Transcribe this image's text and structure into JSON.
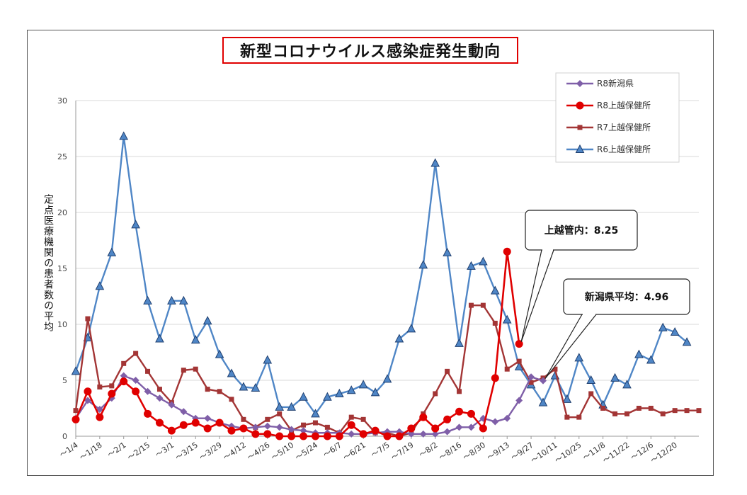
{
  "chart_data": {
    "type": "line",
    "title": "新型コロナウイルス感染症発生動向",
    "ylabel": "定点医療機関の患者数の平均",
    "xlabel": "",
    "ylim": [
      0,
      30
    ],
    "yticks": [
      0,
      5,
      10,
      15,
      20,
      25,
      30
    ],
    "grid": true,
    "legend_position": "top-right",
    "x_tick_labels": [
      "～1/4",
      "～1/18",
      "～2/1",
      "～2/15",
      "～3/1",
      "～3/15",
      "～3/29",
      "～4/12",
      "～4/26",
      "～5/10",
      "～5/24",
      "～6/7",
      "～6/21",
      "～7/5",
      "～7/19",
      "～8/2",
      "～8/16",
      "～8/30",
      "～9/13",
      "～9/27",
      "～10/11",
      "～10/25",
      "～11/8",
      "～11/22",
      "～12/6",
      "～12/20"
    ],
    "n_points": 53,
    "series": [
      {
        "name": "R8新潟県",
        "color": "#7f5fa8",
        "marker": "diamond",
        "values": [
          1.6,
          3.2,
          2.4,
          3.4,
          5.4,
          5.0,
          4.0,
          3.4,
          2.8,
          2.2,
          1.6,
          1.6,
          1.2,
          0.9,
          0.7,
          0.8,
          0.9,
          0.8,
          0.6,
          0.5,
          0.3,
          0.3,
          0.3,
          0.2,
          0.2,
          0.3,
          0.4,
          0.4,
          0.2,
          0.2,
          0.2,
          0.4,
          0.8,
          0.8,
          1.6,
          1.3,
          1.6,
          3.2,
          5.3,
          4.96
        ]
      },
      {
        "name": "R8上越保健所",
        "color": "#e00000",
        "marker": "circle",
        "values": [
          1.5,
          4.0,
          1.7,
          3.8,
          4.9,
          4.0,
          2.0,
          1.2,
          0.5,
          1.0,
          1.2,
          0.7,
          1.2,
          0.5,
          0.7,
          0.2,
          0.2,
          0.0,
          0.0,
          0.0,
          0.0,
          0.0,
          0.0,
          1.0,
          0.2,
          0.5,
          0.0,
          0.0,
          0.7,
          1.7,
          0.7,
          1.5,
          2.2,
          2.0,
          0.7,
          5.2,
          16.5,
          8.25
        ]
      },
      {
        "name": "R7上越保健所",
        "color": "#a33535",
        "marker": "square",
        "values": [
          2.3,
          10.5,
          4.4,
          4.5,
          6.5,
          7.4,
          5.8,
          4.2,
          3.0,
          5.9,
          6.0,
          4.2,
          4.0,
          3.3,
          1.5,
          0.8,
          1.5,
          2.0,
          0.5,
          1.0,
          1.2,
          0.8,
          0.3,
          1.7,
          1.5,
          0.3,
          0.3,
          0.0,
          0.3,
          2.0,
          3.8,
          5.8,
          4.0,
          11.7,
          11.7,
          10.1,
          6.0,
          6.7,
          4.8,
          5.2,
          6.0,
          1.7,
          1.7,
          3.8,
          2.5,
          2.0,
          2.0,
          2.5,
          2.5,
          2.0,
          2.3,
          2.3,
          2.3
        ]
      },
      {
        "name": "R6上越保健所",
        "color": "#4f86c6",
        "marker": "triangle",
        "values": [
          5.8,
          8.8,
          13.4,
          16.4,
          26.8,
          18.9,
          12.1,
          8.7,
          12.1,
          12.1,
          8.6,
          10.3,
          7.3,
          5.6,
          4.4,
          4.3,
          6.8,
          2.6,
          2.6,
          3.5,
          2.0,
          3.5,
          3.8,
          4.1,
          4.6,
          3.9,
          5.1,
          8.7,
          9.6,
          15.3,
          24.4,
          16.4,
          8.3,
          15.2,
          15.6,
          13.0,
          10.4,
          6.2,
          4.6,
          3.0,
          5.4,
          3.3,
          7.0,
          5.0,
          2.8,
          5.2,
          4.6,
          7.3,
          6.8,
          9.7,
          9.3,
          8.4
        ]
      }
    ],
    "annotations": [
      {
        "text": "上越管内：8.25",
        "target_series": "R8上越保健所"
      },
      {
        "text": "新潟県平均：4.96",
        "target_series": "R8新潟県"
      }
    ]
  }
}
